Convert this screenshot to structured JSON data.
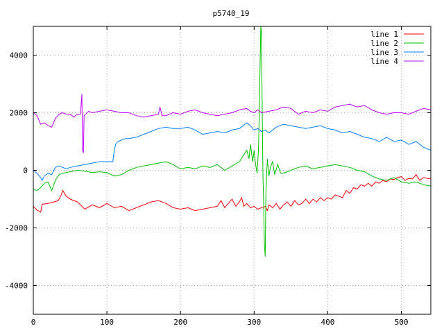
{
  "chart_data": {
    "type": "line",
    "title": "p5740_19",
    "xlabel": "",
    "ylabel": "",
    "xlim": [
      0,
      540
    ],
    "ylim": [
      -5000,
      5000
    ],
    "xticks": [
      0,
      100,
      200,
      300,
      400,
      500
    ],
    "yticks": [
      -4000,
      -2000,
      0,
      2000,
      4000
    ],
    "grid": true,
    "legend_position": "top-right",
    "series": [
      {
        "name": "line 1",
        "color": "#ff0000",
        "points": [
          [
            0,
            -1250
          ],
          [
            5,
            -1380
          ],
          [
            10,
            -1450
          ],
          [
            12,
            -1180
          ],
          [
            20,
            -1150
          ],
          [
            28,
            -1100
          ],
          [
            34,
            -1050
          ],
          [
            38,
            -850
          ],
          [
            40,
            -700
          ],
          [
            44,
            -880
          ],
          [
            50,
            -1000
          ],
          [
            60,
            -1100
          ],
          [
            70,
            -1350
          ],
          [
            80,
            -1200
          ],
          [
            90,
            -1300
          ],
          [
            100,
            -1150
          ],
          [
            110,
            -1300
          ],
          [
            120,
            -1250
          ],
          [
            130,
            -1400
          ],
          [
            140,
            -1300
          ],
          [
            150,
            -1200
          ],
          [
            160,
            -1100
          ],
          [
            170,
            -1050
          ],
          [
            180,
            -1150
          ],
          [
            190,
            -1300
          ],
          [
            200,
            -1350
          ],
          [
            210,
            -1300
          ],
          [
            220,
            -1400
          ],
          [
            230,
            -1350
          ],
          [
            240,
            -1300
          ],
          [
            250,
            -1250
          ],
          [
            255,
            -1050
          ],
          [
            260,
            -1300
          ],
          [
            265,
            -1150
          ],
          [
            270,
            -1000
          ],
          [
            275,
            -1250
          ],
          [
            280,
            -1100
          ],
          [
            283,
            -950
          ],
          [
            286,
            -1250
          ],
          [
            290,
            -1150
          ],
          [
            295,
            -1300
          ],
          [
            300,
            -1250
          ],
          [
            305,
            -1350
          ],
          [
            310,
            -1300
          ],
          [
            315,
            -1250
          ],
          [
            318,
            -1400
          ],
          [
            320,
            -1200
          ],
          [
            325,
            -1300
          ],
          [
            330,
            -1150
          ],
          [
            335,
            -1350
          ],
          [
            340,
            -1200
          ],
          [
            345,
            -1100
          ],
          [
            350,
            -1250
          ],
          [
            355,
            -1050
          ],
          [
            360,
            -1200
          ],
          [
            365,
            -1150
          ],
          [
            370,
            -1000
          ],
          [
            375,
            -1150
          ],
          [
            380,
            -1000
          ],
          [
            385,
            -1100
          ],
          [
            390,
            -950
          ],
          [
            395,
            -1050
          ],
          [
            400,
            -950
          ],
          [
            405,
            -1000
          ],
          [
            410,
            -850
          ],
          [
            415,
            -900
          ],
          [
            420,
            -950
          ],
          [
            425,
            -700
          ],
          [
            430,
            -800
          ],
          [
            435,
            -600
          ],
          [
            440,
            -650
          ],
          [
            445,
            -500
          ],
          [
            450,
            -550
          ],
          [
            455,
            -450
          ],
          [
            460,
            -550
          ],
          [
            465,
            -400
          ],
          [
            470,
            -450
          ],
          [
            475,
            -350
          ],
          [
            480,
            -400
          ],
          [
            485,
            -300
          ],
          [
            490,
            -320
          ],
          [
            495,
            -250
          ],
          [
            500,
            -220
          ],
          [
            505,
            -350
          ],
          [
            510,
            -280
          ],
          [
            515,
            -300
          ],
          [
            520,
            -150
          ],
          [
            525,
            -350
          ],
          [
            530,
            -250
          ],
          [
            540,
            -300
          ]
        ]
      },
      {
        "name": "line 2",
        "color": "#00c000",
        "points": [
          [
            0,
            -650
          ],
          [
            5,
            -700
          ],
          [
            10,
            -600
          ],
          [
            15,
            -450
          ],
          [
            20,
            -400
          ],
          [
            25,
            -700
          ],
          [
            30,
            -350
          ],
          [
            35,
            -150
          ],
          [
            40,
            -100
          ],
          [
            50,
            -50
          ],
          [
            60,
            0
          ],
          [
            70,
            -30
          ],
          [
            80,
            -80
          ],
          [
            90,
            -50
          ],
          [
            100,
            -80
          ],
          [
            110,
            -200
          ],
          [
            120,
            -150
          ],
          [
            130,
            0
          ],
          [
            140,
            100
          ],
          [
            150,
            150
          ],
          [
            160,
            200
          ],
          [
            170,
            250
          ],
          [
            180,
            300
          ],
          [
            190,
            200
          ],
          [
            200,
            50
          ],
          [
            210,
            100
          ],
          [
            220,
            50
          ],
          [
            230,
            150
          ],
          [
            240,
            100
          ],
          [
            250,
            200
          ],
          [
            260,
            0
          ],
          [
            270,
            150
          ],
          [
            280,
            300
          ],
          [
            285,
            500
          ],
          [
            290,
            700
          ],
          [
            293,
            400
          ],
          [
            295,
            900
          ],
          [
            298,
            300
          ],
          [
            300,
            700
          ],
          [
            302,
            200
          ],
          [
            304,
            -100
          ],
          [
            306,
            800
          ],
          [
            308,
            3500
          ],
          [
            309,
            5000
          ],
          [
            310,
            4800
          ],
          [
            311,
            2000
          ],
          [
            312,
            -300
          ],
          [
            313,
            -1200
          ],
          [
            314,
            -2600
          ],
          [
            315,
            -3000
          ],
          [
            316,
            -800
          ],
          [
            317,
            -100
          ],
          [
            318,
            400
          ],
          [
            320,
            -200
          ],
          [
            322,
            100
          ],
          [
            325,
            300
          ],
          [
            328,
            -150
          ],
          [
            332,
            200
          ],
          [
            336,
            -100
          ],
          [
            340,
            -100
          ],
          [
            350,
            0
          ],
          [
            360,
            100
          ],
          [
            370,
            150
          ],
          [
            380,
            50
          ],
          [
            390,
            100
          ],
          [
            400,
            150
          ],
          [
            410,
            200
          ],
          [
            420,
            150
          ],
          [
            430,
            100
          ],
          [
            440,
            0
          ],
          [
            450,
            -50
          ],
          [
            460,
            -200
          ],
          [
            470,
            -300
          ],
          [
            480,
            -350
          ],
          [
            490,
            -250
          ],
          [
            500,
            -400
          ],
          [
            510,
            -450
          ],
          [
            520,
            -400
          ],
          [
            530,
            -500
          ],
          [
            540,
            -550
          ]
        ]
      },
      {
        "name": "line 3",
        "color": "#0080ff",
        "points": [
          [
            0,
            0
          ],
          [
            5,
            -100
          ],
          [
            10,
            -250
          ],
          [
            12,
            -350
          ],
          [
            15,
            -200
          ],
          [
            20,
            -100
          ],
          [
            25,
            -150
          ],
          [
            30,
            100
          ],
          [
            35,
            150
          ],
          [
            40,
            100
          ],
          [
            45,
            50
          ],
          [
            50,
            100
          ],
          [
            60,
            150
          ],
          [
            70,
            200
          ],
          [
            80,
            250
          ],
          [
            90,
            300
          ],
          [
            100,
            300
          ],
          [
            108,
            300
          ],
          [
            110,
            700
          ],
          [
            112,
            900
          ],
          [
            115,
            1000
          ],
          [
            120,
            1050
          ],
          [
            125,
            1100
          ],
          [
            130,
            1100
          ],
          [
            140,
            1150
          ],
          [
            150,
            1250
          ],
          [
            160,
            1350
          ],
          [
            170,
            1450
          ],
          [
            180,
            1500
          ],
          [
            190,
            1450
          ],
          [
            200,
            1450
          ],
          [
            210,
            1500
          ],
          [
            220,
            1400
          ],
          [
            230,
            1250
          ],
          [
            240,
            1300
          ],
          [
            250,
            1350
          ],
          [
            260,
            1300
          ],
          [
            270,
            1400
          ],
          [
            280,
            1450
          ],
          [
            285,
            1550
          ],
          [
            290,
            1650
          ],
          [
            295,
            1550
          ],
          [
            300,
            1400
          ],
          [
            305,
            1450
          ],
          [
            310,
            1350
          ],
          [
            315,
            1400
          ],
          [
            320,
            1300
          ],
          [
            330,
            1500
          ],
          [
            340,
            1600
          ],
          [
            350,
            1550
          ],
          [
            360,
            1500
          ],
          [
            370,
            1450
          ],
          [
            380,
            1500
          ],
          [
            390,
            1550
          ],
          [
            400,
            1450
          ],
          [
            410,
            1400
          ],
          [
            420,
            1300
          ],
          [
            430,
            1350
          ],
          [
            440,
            1250
          ],
          [
            450,
            1150
          ],
          [
            460,
            1100
          ],
          [
            470,
            1000
          ],
          [
            480,
            1150
          ],
          [
            490,
            1000
          ],
          [
            500,
            1050
          ],
          [
            510,
            900
          ],
          [
            520,
            1000
          ],
          [
            530,
            800
          ],
          [
            540,
            700
          ]
        ]
      },
      {
        "name": "line 4",
        "color": "#c000ff",
        "points": [
          [
            0,
            2000
          ],
          [
            5,
            1900
          ],
          [
            10,
            1600
          ],
          [
            15,
            1650
          ],
          [
            20,
            1550
          ],
          [
            25,
            1500
          ],
          [
            30,
            1800
          ],
          [
            35,
            1950
          ],
          [
            40,
            2000
          ],
          [
            45,
            1950
          ],
          [
            50,
            1950
          ],
          [
            55,
            1850
          ],
          [
            60,
            1950
          ],
          [
            64,
            1950
          ],
          [
            65,
            2300
          ],
          [
            66,
            2650
          ],
          [
            67,
            700
          ],
          [
            68,
            600
          ],
          [
            69,
            1900
          ],
          [
            75,
            2050
          ],
          [
            80,
            2000
          ],
          [
            90,
            2050
          ],
          [
            100,
            2100
          ],
          [
            110,
            2050
          ],
          [
            120,
            2000
          ],
          [
            130,
            2000
          ],
          [
            140,
            1900
          ],
          [
            150,
            1850
          ],
          [
            160,
            1900
          ],
          [
            170,
            1950
          ],
          [
            172,
            2200
          ],
          [
            175,
            1900
          ],
          [
            180,
            1900
          ],
          [
            190,
            2000
          ],
          [
            200,
            1950
          ],
          [
            210,
            2050
          ],
          [
            220,
            2100
          ],
          [
            230,
            2000
          ],
          [
            240,
            1950
          ],
          [
            250,
            1900
          ],
          [
            260,
            1950
          ],
          [
            270,
            2000
          ],
          [
            280,
            2100
          ],
          [
            290,
            2150
          ],
          [
            295,
            2050
          ],
          [
            300,
            2000
          ],
          [
            305,
            2100
          ],
          [
            310,
            2000
          ],
          [
            320,
            2050
          ],
          [
            330,
            2100
          ],
          [
            340,
            2200
          ],
          [
            350,
            2150
          ],
          [
            360,
            1950
          ],
          [
            370,
            2050
          ],
          [
            380,
            2000
          ],
          [
            390,
            2100
          ],
          [
            400,
            2050
          ],
          [
            410,
            2200
          ],
          [
            420,
            2250
          ],
          [
            430,
            2300
          ],
          [
            440,
            2200
          ],
          [
            450,
            2250
          ],
          [
            460,
            2100
          ],
          [
            470,
            2000
          ],
          [
            480,
            1950
          ],
          [
            490,
            2000
          ],
          [
            500,
            2000
          ],
          [
            510,
            1950
          ],
          [
            520,
            2050
          ],
          [
            530,
            2150
          ],
          [
            540,
            2100
          ]
        ]
      }
    ]
  }
}
